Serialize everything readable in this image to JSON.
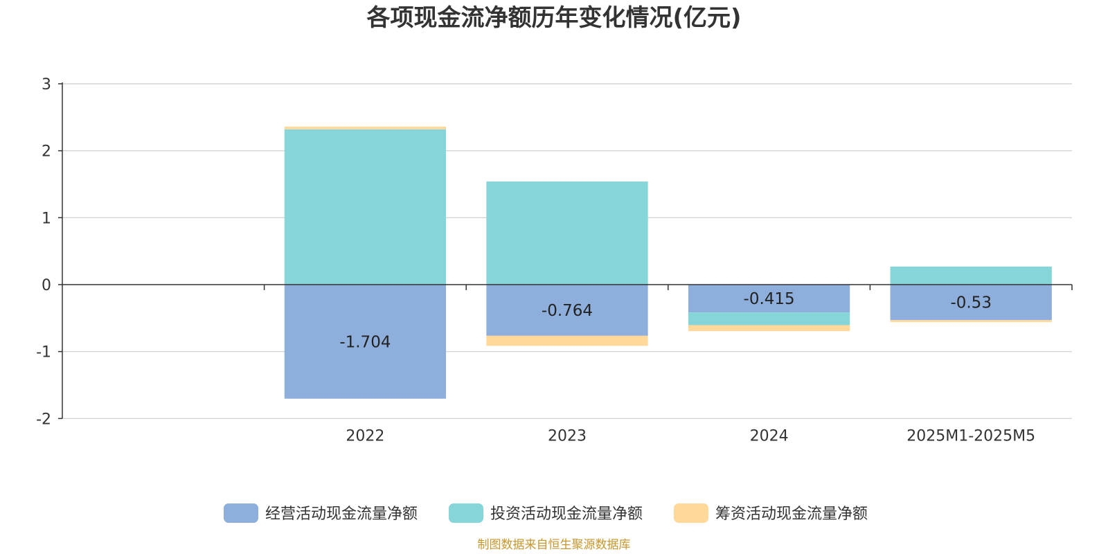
{
  "chart_data": {
    "type": "bar",
    "stacked": true,
    "title": "各项现金流净额历年变化情况(亿元)",
    "categories": [
      "2022",
      "2023",
      "2024",
      "2025M1-2025M5"
    ],
    "ylim": [
      -2,
      3
    ],
    "yticks": [
      3,
      2,
      1,
      0,
      -1,
      -2
    ],
    "grid": true,
    "legend_position": "bottom",
    "series": [
      {
        "name": "经营活动现金流量净额",
        "color": "#8eaedb",
        "values": [
          -1.704,
          -0.764,
          -0.415,
          -0.53
        ],
        "labels": [
          "-1.704",
          "-0.764",
          "-0.415",
          "-0.53"
        ]
      },
      {
        "name": "投资活动现金流量净额",
        "color": "#86d5d8",
        "values": [
          2.32,
          1.54,
          -0.19,
          0.27
        ]
      },
      {
        "name": "筹资活动现金流量净额",
        "color": "#ffd89a",
        "values": [
          0.04,
          -0.15,
          -0.09,
          -0.03
        ]
      }
    ],
    "source_note": "制图数据来自恒生聚源数据库"
  }
}
